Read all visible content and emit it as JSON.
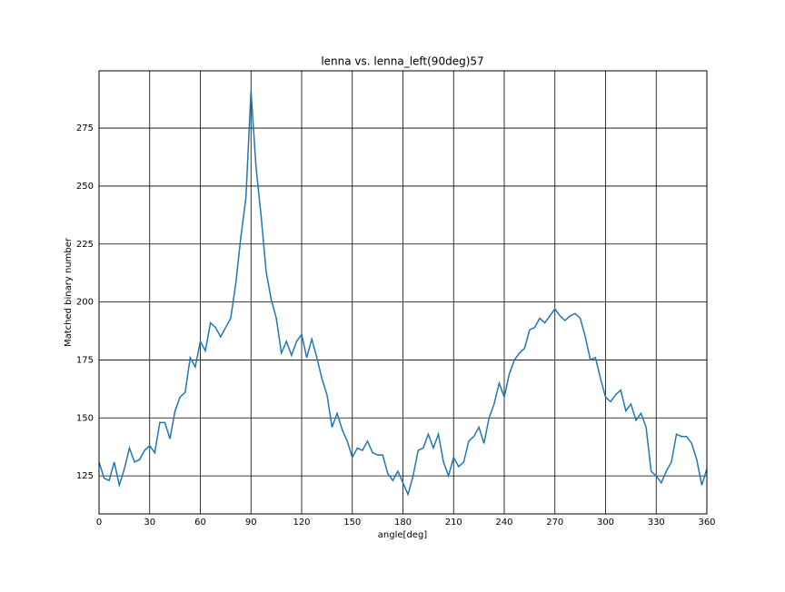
{
  "chart_data": {
    "type": "line",
    "title": "lenna vs. lenna_left(90deg)57",
    "xlabel": "angle[deg]",
    "ylabel": "Matched binary number",
    "x": [
      0,
      3,
      6,
      9,
      12,
      15,
      18,
      21,
      24,
      27,
      30,
      33,
      36,
      39,
      42,
      45,
      48,
      51,
      54,
      57,
      60,
      63,
      66,
      69,
      72,
      75,
      78,
      81,
      84,
      87,
      90,
      93,
      96,
      99,
      102,
      105,
      108,
      111,
      114,
      117,
      120,
      123,
      126,
      129,
      132,
      135,
      138,
      141,
      144,
      147,
      150,
      153,
      156,
      159,
      162,
      165,
      168,
      171,
      174,
      177,
      180,
      183,
      186,
      189,
      192,
      195,
      198,
      201,
      204,
      207,
      210,
      213,
      216,
      219,
      222,
      225,
      228,
      231,
      234,
      237,
      240,
      243,
      246,
      249,
      252,
      255,
      258,
      261,
      264,
      267,
      270,
      273,
      276,
      279,
      282,
      285,
      288,
      291,
      294,
      297,
      300,
      303,
      306,
      309,
      312,
      315,
      318,
      321,
      324,
      327,
      330,
      333,
      336,
      339,
      342,
      345,
      348,
      351,
      354,
      357,
      360
    ],
    "series": [
      {
        "color": "#1f77b4",
        "values": [
          131,
          124,
          123,
          131,
          121,
          128,
          137,
          131,
          132,
          136,
          138,
          135,
          148,
          148,
          141,
          153,
          159,
          161,
          176,
          172,
          183,
          179,
          191,
          189,
          185,
          189,
          193,
          208,
          228,
          245,
          291,
          258,
          237,
          213,
          201,
          193,
          178,
          183,
          177,
          183,
          186,
          176,
          184,
          176,
          167,
          160,
          146,
          152,
          145,
          140,
          133,
          137,
          136,
          140,
          135,
          134,
          134,
          126,
          123,
          127,
          122,
          117,
          125,
          136,
          137,
          143,
          137,
          143,
          131,
          125,
          133,
          129,
          131,
          140,
          142,
          146,
          139,
          150,
          156,
          165,
          159,
          169,
          175,
          178,
          180,
          188,
          189,
          193,
          191,
          194,
          197,
          194,
          192,
          194,
          195,
          193,
          185,
          175,
          176,
          167,
          159,
          157,
          160,
          162,
          153,
          156,
          149,
          152,
          146,
          127,
          125,
          122,
          127,
          131,
          143,
          142,
          142,
          139,
          132,
          121,
          128
        ]
      }
    ],
    "xlim": [
      0,
      360
    ],
    "xticks": [
      0,
      30,
      60,
      90,
      120,
      150,
      180,
      210,
      240,
      270,
      300,
      330,
      360
    ],
    "ylim": [
      108.6,
      299.7
    ],
    "yticks": [
      125,
      150,
      175,
      200,
      225,
      250,
      275
    ],
    "grid": true
  }
}
